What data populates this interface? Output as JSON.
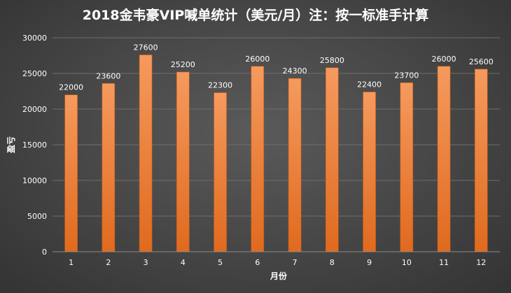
{
  "chart_data": {
    "type": "bar",
    "title": "2018金韦豪VIP喊单统计（美元/月）注：按一标准手计算",
    "xlabel": "月份",
    "ylabel": "盈亏",
    "categories": [
      "1",
      "2",
      "3",
      "4",
      "5",
      "6",
      "7",
      "8",
      "9",
      "10",
      "11",
      "12"
    ],
    "values": [
      22000,
      23600,
      27600,
      25200,
      22300,
      26000,
      24300,
      25800,
      22400,
      23700,
      26000,
      25600
    ],
    "ylim": [
      0,
      30000
    ],
    "yticks": [
      "0",
      "5000",
      "10000",
      "15000",
      "20000",
      "25000",
      "30000"
    ],
    "grid": true,
    "legend": "none",
    "colors": {
      "bar_top": "#f59a5e",
      "bar_bottom": "#e06a1e",
      "bar_edge": "#c85a18"
    }
  }
}
